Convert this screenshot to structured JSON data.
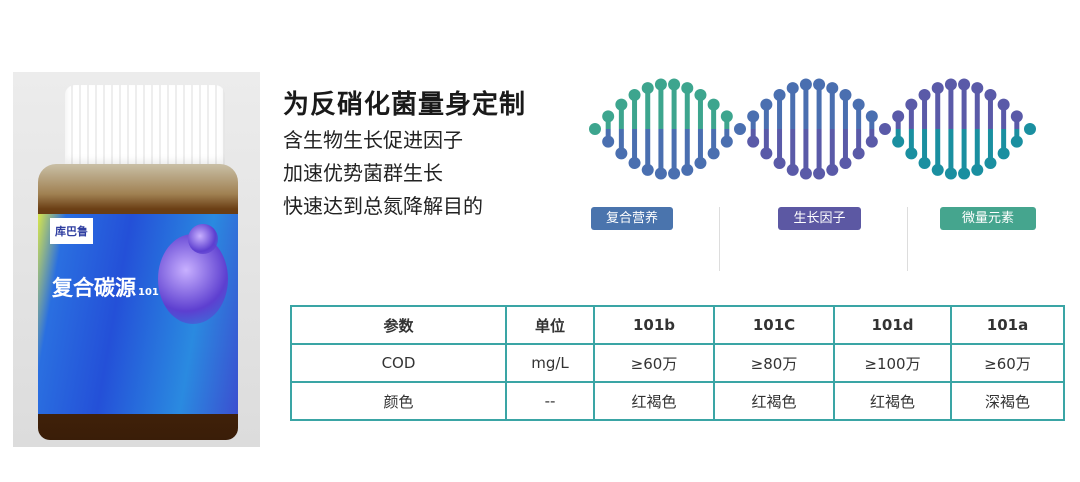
{
  "product": {
    "brand": "库巴鲁",
    "name": "复合碳源",
    "model": "101"
  },
  "headline": "为反硝化菌量身定制",
  "features": [
    "含生物生长促进因子",
    "加速优势菌群生长",
    "快速达到总氮降解目的"
  ],
  "badges": [
    {
      "label": "复合营养",
      "color": "#4a74ad"
    },
    {
      "label": "生长因子",
      "color": "#5c58a3"
    },
    {
      "label": "微量元素",
      "color": "#45a58e"
    }
  ],
  "colors": {
    "teal": "#3da58e",
    "blue": "#4a6fb0",
    "purple": "#5a5aa8",
    "cyan": "#1a8fa0",
    "table_border": "#3aa5a5"
  },
  "table": {
    "header": [
      "参数",
      "单位",
      "101b",
      "101C",
      "101d",
      "101a"
    ],
    "rows": [
      [
        "COD",
        "mg/L",
        "≥60万",
        "≥80万",
        "≥100万",
        "≥60万"
      ],
      [
        "颜色",
        "--",
        "红褐色",
        "红褐色",
        "红褐色",
        "深褐色"
      ]
    ]
  }
}
